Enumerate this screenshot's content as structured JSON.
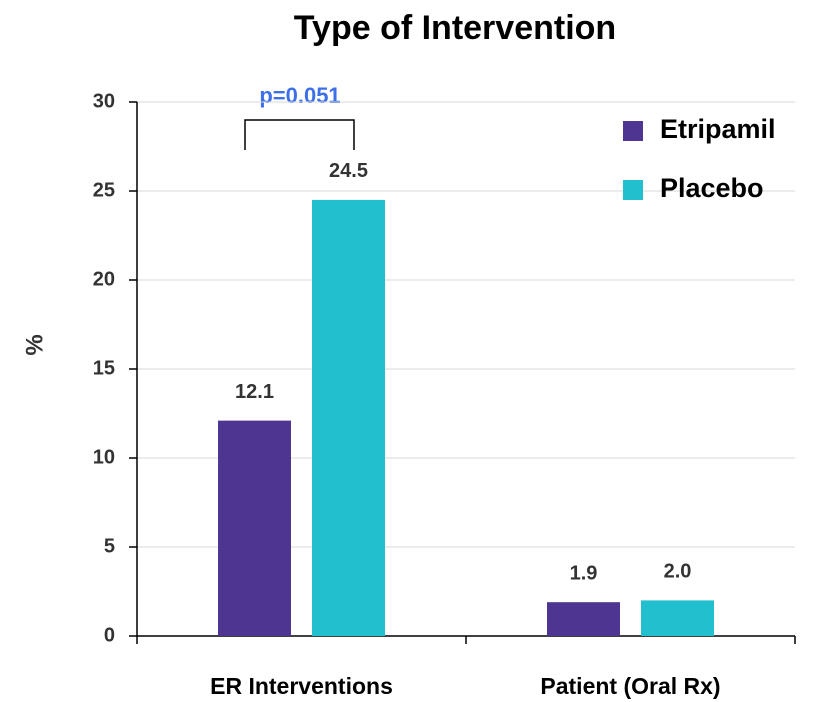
{
  "chart_data": {
    "type": "bar",
    "title": "Type of Intervention",
    "y_label": "%",
    "categories": [
      "ER Interventions",
      "Patient (Oral Rx)"
    ],
    "series": [
      {
        "name": "Etripamil",
        "color": "#4e3591",
        "values": [
          12.1,
          1.9
        ],
        "value_labels": [
          "12.1",
          "1.9"
        ]
      },
      {
        "name": "Placebo",
        "color": "#22bfcf",
        "values": [
          24.5,
          2
        ],
        "value_labels": [
          "24.5",
          "2.0"
        ]
      }
    ],
    "annotation": "p=0.051",
    "ylim": [
      0,
      30
    ],
    "yticks": [
      0,
      5,
      10,
      15,
      20,
      25,
      30
    ],
    "grid": true,
    "legend": "top-right"
  }
}
